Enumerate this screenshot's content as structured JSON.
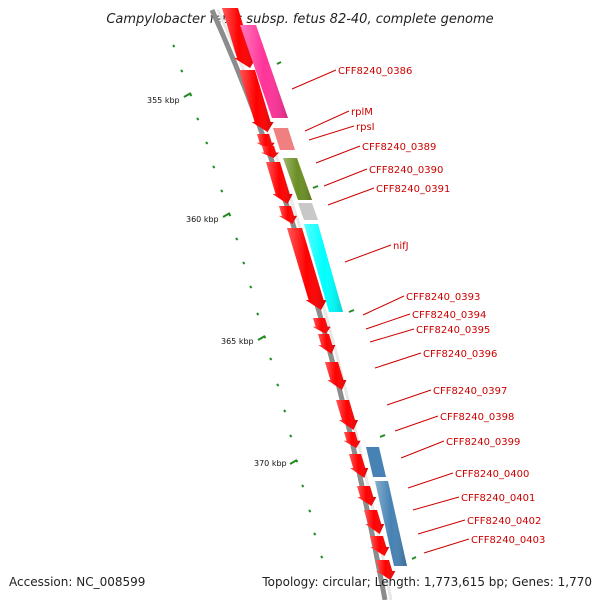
{
  "title": "Campylobacter fetus subsp. fetus 82-40, complete genome",
  "footer": {
    "accession": "Accession: NC_008599",
    "summary": "Topology: circular; Length: 1,773,615 bp; Genes: 1,770"
  },
  "ruler_labels": [
    "355 kbp",
    "360 kbp",
    "365 kbp",
    "370 kbp"
  ],
  "colors": {
    "cds_arrow": "#ff0000",
    "backbone": "#888888",
    "ticks": "#228B22",
    "label_text": "#cc0000",
    "category_magenta": "#ff3399",
    "category_pink": "#f08080",
    "category_olive": "#6b8e23",
    "category_grey": "#c8c8c8",
    "category_cyan": "#00ffff",
    "category_steelblue": "#4682b4"
  },
  "gene_labels": [
    {
      "text": "CFF8240_0386",
      "category": "category_magenta"
    },
    {
      "text": "rplM",
      "category": "category_pink"
    },
    {
      "text": "rpsI",
      "category": "category_pink"
    },
    {
      "text": "CFF8240_0389",
      "category": "category_olive"
    },
    {
      "text": "CFF8240_0390",
      "category": "category_olive"
    },
    {
      "text": "CFF8240_0391",
      "category": "category_grey"
    },
    {
      "text": "nifJ",
      "category": "category_cyan"
    },
    {
      "text": "CFF8240_0393",
      "category": null
    },
    {
      "text": "CFF8240_0394",
      "category": null
    },
    {
      "text": "CFF8240_0395",
      "category": null
    },
    {
      "text": "CFF8240_0396",
      "category": null
    },
    {
      "text": "CFF8240_0397",
      "category": null
    },
    {
      "text": "CFF8240_0398",
      "category": null
    },
    {
      "text": "CFF8240_0399",
      "category": "category_steelblue"
    },
    {
      "text": "CFF8240_0400",
      "category": "category_steelblue"
    },
    {
      "text": "CFF8240_0401",
      "category": "category_steelblue"
    },
    {
      "text": "CFF8240_0402",
      "category": "category_steelblue"
    },
    {
      "text": "CFF8240_0403",
      "category": "category_steelblue"
    }
  ]
}
